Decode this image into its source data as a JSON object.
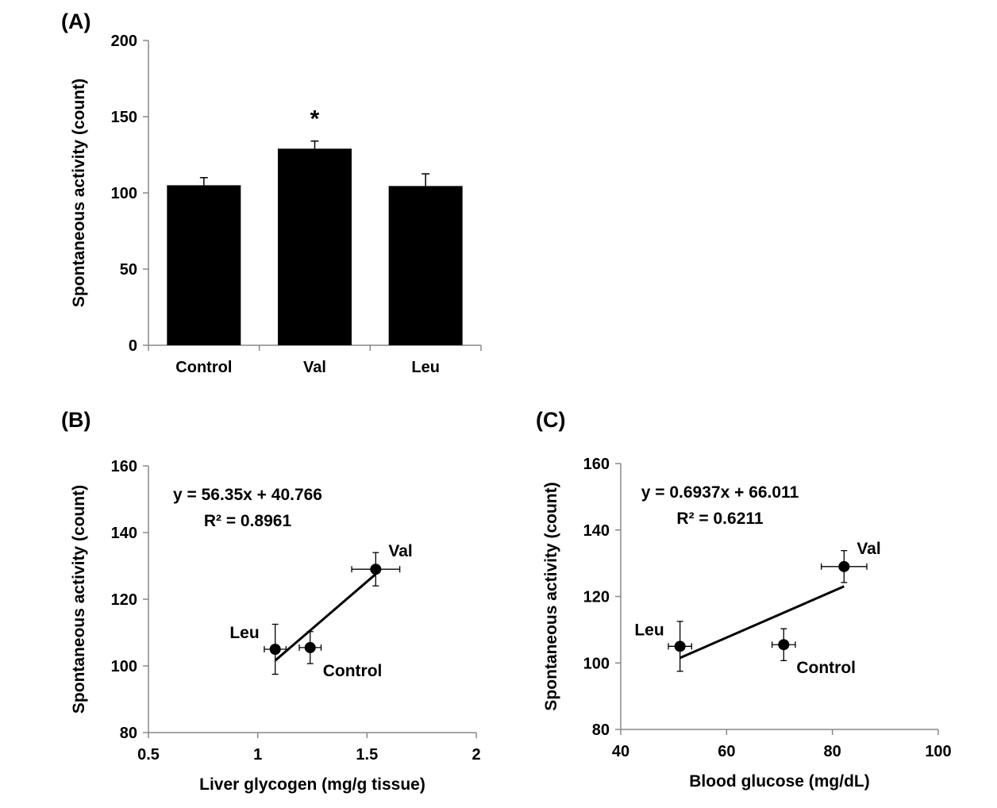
{
  "colors": {
    "ink": "#000000",
    "axis": "#888888",
    "background": "#ffffff"
  },
  "chart_data": [
    {
      "id": "A",
      "type": "bar",
      "panel_label": "(A)",
      "categories": [
        "Control",
        "Val",
        "Leu"
      ],
      "values": [
        105,
        129,
        104.5
      ],
      "errors": [
        5,
        5,
        8
      ],
      "significance": [
        "",
        "*",
        ""
      ],
      "ylabel": "Spontaneous  activity (count)",
      "xlabel": "",
      "ylim": [
        0,
        200
      ],
      "yticks": [
        0,
        50,
        100,
        150,
        200
      ],
      "ytick_labels": [
        "0",
        "50",
        "100",
        "150",
        "200"
      ]
    },
    {
      "id": "B",
      "type": "scatter",
      "panel_label": "(B)",
      "xlabel": "Liver glycogen (mg/g tissue)",
      "ylabel": "Spontaneous  activity (count)",
      "xlim": [
        0.5,
        2
      ],
      "ylim": [
        80,
        160
      ],
      "xticks": [
        0.5,
        1,
        1.5,
        2
      ],
      "xtick_labels": [
        "0.5",
        "1",
        "1.5",
        "2"
      ],
      "yticks": [
        80,
        100,
        120,
        140,
        160
      ],
      "ytick_labels": [
        "80",
        "100",
        "120",
        "140",
        "160"
      ],
      "points": [
        {
          "label": "Val",
          "x": 1.54,
          "y": 129,
          "xerr": 0.11,
          "yerr": 5
        },
        {
          "label": "Leu",
          "x": 1.08,
          "y": 105,
          "xerr": 0.05,
          "yerr": 7.5
        },
        {
          "label": "Control",
          "x": 1.24,
          "y": 105.5,
          "xerr": 0.05,
          "yerr": 4.8
        }
      ],
      "fit_line": {
        "slope": 56.35,
        "intercept": 40.766,
        "x_range": [
          1.08,
          1.54
        ]
      },
      "equation": "y = 56.35x + 40.766",
      "r_squared": "R² = 0.8961"
    },
    {
      "id": "C",
      "type": "scatter",
      "panel_label": "(C)",
      "xlabel": "Blood glucose (mg/dL)",
      "ylabel": "Spontaneous  activity (count)",
      "xlim": [
        40,
        100
      ],
      "ylim": [
        80,
        160
      ],
      "xticks": [
        40,
        60,
        80,
        100
      ],
      "xtick_labels": [
        "40",
        "60",
        "80",
        "100"
      ],
      "yticks": [
        80,
        100,
        120,
        140,
        160
      ],
      "ytick_labels": [
        "80",
        "100",
        "120",
        "140",
        "160"
      ],
      "points": [
        {
          "label": "Val",
          "x": 82.2,
          "y": 129,
          "xerr": 4.3,
          "yerr": 4.8
        },
        {
          "label": "Leu",
          "x": 51.2,
          "y": 105,
          "xerr": 2.2,
          "yerr": 7.5
        },
        {
          "label": "Control",
          "x": 70.8,
          "y": 105.5,
          "xerr": 2.2,
          "yerr": 4.8
        }
      ],
      "fit_line": {
        "slope": 0.6937,
        "intercept": 66.011,
        "x_range": [
          51.2,
          82.2
        ]
      },
      "equation": "y = 0.6937x + 66.011",
      "r_squared": "R² = 0.6211"
    }
  ]
}
